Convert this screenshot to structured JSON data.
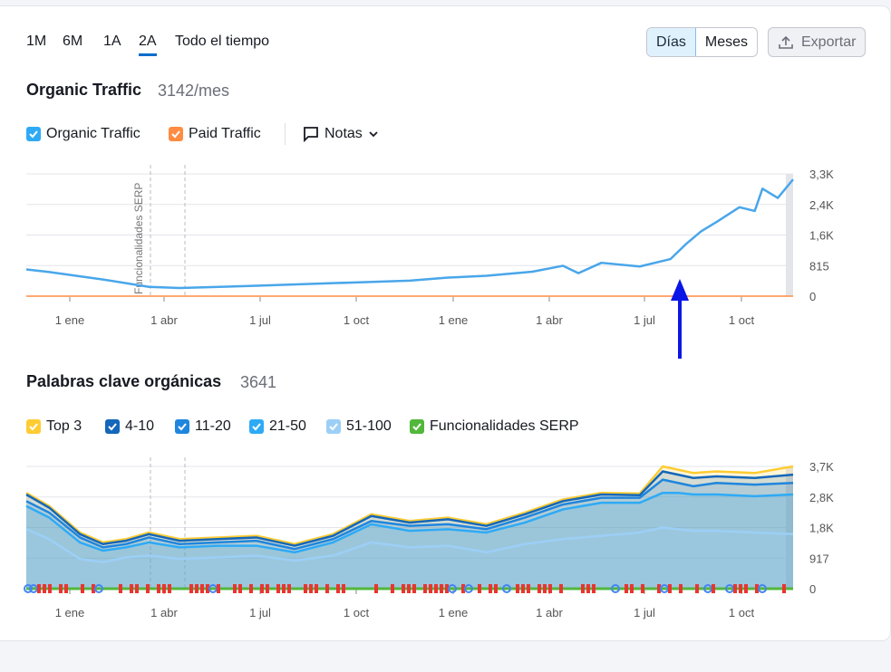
{
  "periods": [
    "1M",
    "6M",
    "1A",
    "2A",
    "Todo el tiempo"
  ],
  "active_period": "2A",
  "toggle": {
    "days": "Días",
    "months": "Meses"
  },
  "export_label": "Exportar",
  "traffic": {
    "title": "Organic Traffic",
    "value": "3142/mes",
    "legend": [
      {
        "label": "Organic Traffic",
        "color": "#2eaaf5"
      },
      {
        "label": "Paid Traffic",
        "color": "#ff8c42"
      }
    ],
    "notes_label": "Notas"
  },
  "keywords": {
    "title": "Palabras clave orgánicas",
    "value": "3641",
    "legend": [
      {
        "label": "Top 3",
        "color": "#ffcc33"
      },
      {
        "label": "4-10",
        "color": "#1467b9"
      },
      {
        "label": "11-20",
        "color": "#1f86dd"
      },
      {
        "label": "21-50",
        "color": "#2eaaf5"
      },
      {
        "label": "51-100",
        "color": "#9ccff6"
      },
      {
        "label": "Funcionalidades SERP",
        "color": "#52b73b"
      }
    ]
  },
  "chart_data": [
    {
      "type": "line",
      "title": "Organic Traffic",
      "x_ticks": [
        "1 ene",
        "1 abr",
        "1 jul",
        "1 oct",
        "1 ene",
        "1 abr",
        "1 jul",
        "1 oct"
      ],
      "y_ticks": [
        "3,3K",
        "2,4K",
        "1,6K",
        "815",
        "0"
      ],
      "ylim": [
        0,
        3300
      ],
      "annotation": "Funcionalidades SERP",
      "series": [
        {
          "name": "Organic Traffic",
          "color": "#49a6ea",
          "x": [
            0,
            0.03,
            0.1,
            0.16,
            0.2,
            0.3,
            0.4,
            0.5,
            0.55,
            0.6,
            0.66,
            0.7,
            0.72,
            0.75,
            0.8,
            0.84,
            0.86,
            0.88,
            0.9,
            0.93,
            0.95,
            0.96,
            0.98,
            1.0
          ],
          "y": [
            720,
            650,
            450,
            250,
            220,
            280,
            350,
            420,
            500,
            550,
            660,
            820,
            620,
            900,
            800,
            1000,
            1400,
            1750,
            2000,
            2400,
            2300,
            2900,
            2650,
            3150
          ]
        },
        {
          "name": "Paid Traffic",
          "color": "#ff8c42",
          "x": [
            0,
            1
          ],
          "y": [
            0,
            0
          ]
        }
      ]
    },
    {
      "type": "area",
      "title": "Palabras clave orgánicas",
      "x_ticks": [
        "1 ene",
        "1 abr",
        "1 jul",
        "1 oct",
        "1 ene",
        "1 abr",
        "1 jul",
        "1 oct"
      ],
      "y_ticks": [
        "3,7K",
        "2,8K",
        "1,8K",
        "917",
        "0"
      ],
      "ylim": [
        0,
        3700
      ],
      "x": [
        0,
        0.03,
        0.07,
        0.1,
        0.13,
        0.16,
        0.2,
        0.25,
        0.3,
        0.35,
        0.4,
        0.45,
        0.5,
        0.55,
        0.6,
        0.65,
        0.7,
        0.75,
        0.8,
        0.83,
        0.85,
        0.87,
        0.9,
        0.95,
        1.0
      ],
      "series": [
        {
          "name": "Top 3",
          "color": "#ffcc33",
          "y": [
            2900,
            2500,
            1700,
            1400,
            1500,
            1700,
            1500,
            1550,
            1600,
            1350,
            1650,
            2250,
            2050,
            2150,
            1950,
            2300,
            2700,
            2900,
            2880,
            3700,
            3600,
            3500,
            3550,
            3500,
            3700
          ]
        },
        {
          "name": "4-10",
          "color": "#1467b9",
          "y": [
            2850,
            2450,
            1650,
            1350,
            1450,
            1650,
            1450,
            1500,
            1550,
            1300,
            1600,
            2200,
            2000,
            2100,
            1900,
            2250,
            2650,
            2850,
            2830,
            3550,
            3450,
            3350,
            3400,
            3350,
            3450
          ]
        },
        {
          "name": "11-20",
          "color": "#1f86dd",
          "y": [
            2650,
            2300,
            1550,
            1250,
            1350,
            1550,
            1350,
            1400,
            1450,
            1200,
            1500,
            2050,
            1900,
            1950,
            1800,
            2150,
            2550,
            2750,
            2750,
            3300,
            3200,
            3100,
            3200,
            3150,
            3200
          ]
        },
        {
          "name": "21-50",
          "color": "#2eaaf5",
          "y": [
            2500,
            2150,
            1400,
            1150,
            1250,
            1400,
            1250,
            1300,
            1300,
            1100,
            1400,
            1950,
            1750,
            1800,
            1700,
            2000,
            2400,
            2600,
            2600,
            2900,
            2900,
            2850,
            2850,
            2800,
            2850
          ]
        },
        {
          "name": "51-100",
          "color": "#9ccff6",
          "y": [
            1800,
            1500,
            900,
            800,
            950,
            1000,
            900,
            950,
            1000,
            850,
            1000,
            1400,
            1250,
            1300,
            1100,
            1350,
            1500,
            1600,
            1700,
            1850,
            1800,
            1750,
            1750,
            1700,
            1650
          ]
        }
      ]
    }
  ]
}
